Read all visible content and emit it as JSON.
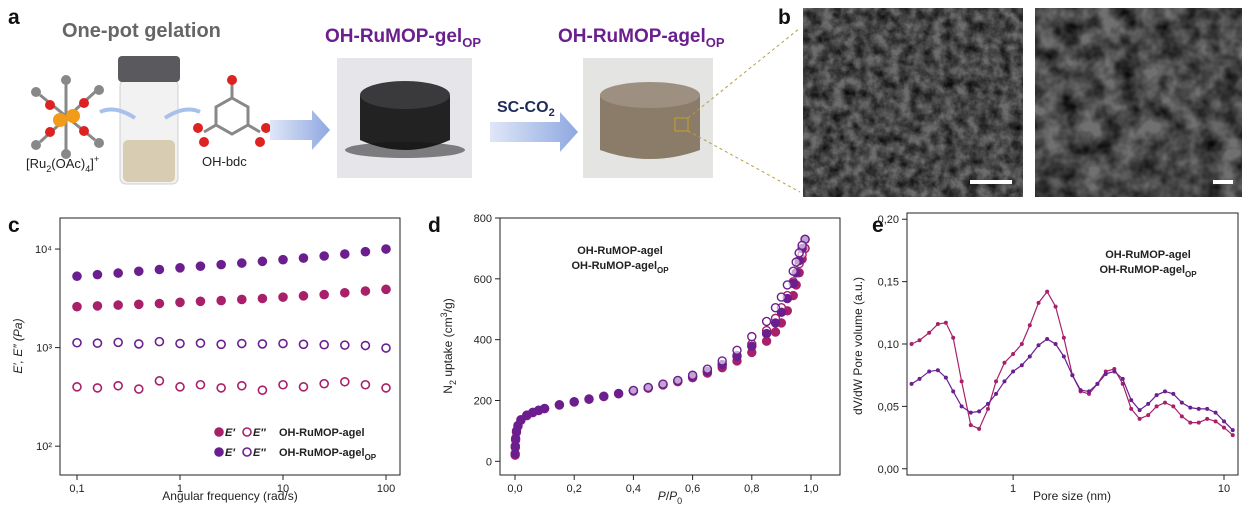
{
  "panel_labels": [
    "a",
    "b",
    "c",
    "d",
    "e"
  ],
  "scheme": {
    "title": "One-pot gelation",
    "complex": [
      "[Ru",
      "2",
      "(OAc)",
      "4",
      "]",
      "+"
    ],
    "linker": "OH-bdc",
    "gel": {
      "text": "OH-RuMOP-gel",
      "sub": "OP"
    },
    "process": {
      "text": "SC-CO",
      "sub": "2"
    },
    "aerogel": {
      "text": "OH-RuMOP-agel",
      "sub": "OP"
    }
  },
  "chart_data": [
    {
      "type": "scatter",
      "xlabel": "Angular frequency (rad/s)",
      "ylabel": "E′, E″ (Pa)",
      "log_x": true,
      "log_y": true,
      "xlim": [
        0.0684,
        136.7
      ],
      "ylim": [
        51,
        20650
      ],
      "xticks": [
        {
          "value": 0.1,
          "label": "0,1"
        },
        1,
        10,
        100
      ],
      "yticks": [
        {
          "value": 100,
          "label": "10²"
        },
        {
          "value": 1000,
          "label": "10³"
        },
        {
          "value": 10000,
          "label": "10⁴"
        }
      ],
      "moduli": [
        {
          "label": "E′",
          "marker": "filled"
        },
        {
          "label": "E″",
          "marker": "open"
        }
      ],
      "x": [
        0.1,
        0.158,
        0.251,
        0.398,
        0.631,
        1,
        1.58,
        2.51,
        3.98,
        6.31,
        10,
        15.8,
        25.1,
        39.8,
        63.1,
        100
      ],
      "samples": [
        {
          "name": "OH-RuMOP-agel",
          "color": "#a8206a",
          "values": [
            [
              2600,
              2650,
              2700,
              2750,
              2800,
              2880,
              2950,
              3000,
              3080,
              3150,
              3250,
              3350,
              3450,
              3600,
              3750,
              3900
            ],
            [
              400,
              390,
              410,
              380,
              460,
              400,
              420,
              390,
              410,
              370,
              420,
              400,
              430,
              450,
              420,
              390
            ]
          ]
        },
        {
          "name": "OH-RuMOP-agel",
          "name_sub": "OP",
          "color": "#6b1f8f",
          "values": [
            [
              5300,
              5500,
              5700,
              5950,
              6200,
              6450,
              6700,
              6950,
              7200,
              7500,
              7800,
              8100,
              8500,
              8900,
              9400,
              10000
            ],
            [
              1120,
              1110,
              1130,
              1090,
              1150,
              1100,
              1110,
              1080,
              1100,
              1090,
              1100,
              1080,
              1070,
              1060,
              1050,
              990
            ]
          ]
        }
      ]
    },
    {
      "type": "isotherm",
      "xlabel": [
        "P",
        "/",
        "P",
        "0"
      ],
      "ylabel": [
        "N",
        "2",
        " uptake (cm",
        "3",
        "/g)"
      ],
      "xlim": [
        -0.0507,
        1.098
      ],
      "ylim": [
        -45,
        800
      ],
      "xticks": [
        {
          "value": 0,
          "label": "0,0"
        },
        {
          "value": 0.2,
          "label": "0,2"
        },
        {
          "value": 0.4,
          "label": "0,4"
        },
        {
          "value": 0.6,
          "label": "0,6"
        },
        {
          "value": 0.8,
          "label": "0,8"
        },
        {
          "value": 1,
          "label": "1,0"
        }
      ],
      "yticks": [
        0,
        200,
        400,
        600,
        800
      ],
      "samples": [
        {
          "name": "OH-RuMOP-agel",
          "color": "#a8206a",
          "branches": [
            {
              "marker": "filled",
              "x": [
                0.0005,
                0.001,
                0.002,
                0.005,
                0.01,
                0.02,
                0.04,
                0.06,
                0.08,
                0.1,
                0.15,
                0.2,
                0.25,
                0.3,
                0.35,
                0.4,
                0.45,
                0.5,
                0.55,
                0.6,
                0.65,
                0.7,
                0.75,
                0.8,
                0.85,
                0.88,
                0.9,
                0.92,
                0.94,
                0.95,
                0.96,
                0.97,
                0.98
              ],
              "y": [
                20,
                45,
                70,
                95,
                115,
                135,
                150,
                160,
                167,
                173,
                185,
                195,
                204,
                213,
                222,
                231,
                241,
                251,
                262,
                275,
                290,
                308,
                330,
                358,
                395,
                425,
                455,
                495,
                545,
                580,
                620,
                665,
                700
              ]
            },
            {
              "marker": "open",
              "x": [
                0.98,
                0.97,
                0.96,
                0.95,
                0.94,
                0.92,
                0.9,
                0.88,
                0.85,
                0.8,
                0.75,
                0.7,
                0.65,
                0.6,
                0.55,
                0.5,
                0.45,
                0.4
              ],
              "y": [
                700,
                680,
                650,
                620,
                590,
                545,
                505,
                470,
                430,
                385,
                348,
                318,
                295,
                278,
                263,
                252,
                241,
                232
              ]
            }
          ]
        },
        {
          "name": "OH-RuMOP-agel",
          "name_sub": "OP",
          "color": "#6b1f8f",
          "branches": [
            {
              "marker": "filled",
              "x": [
                0.0005,
                0.001,
                0.002,
                0.005,
                0.01,
                0.02,
                0.04,
                0.06,
                0.08,
                0.1,
                0.15,
                0.2,
                0.25,
                0.3,
                0.35,
                0.4,
                0.45,
                0.5,
                0.55,
                0.6,
                0.65,
                0.7,
                0.75,
                0.8,
                0.85,
                0.88,
                0.9,
                0.92,
                0.94,
                0.95,
                0.96,
                0.97,
                0.98
              ],
              "y": [
                25,
                50,
                75,
                100,
                118,
                137,
                152,
                161,
                168,
                174,
                186,
                196,
                205,
                214,
                223,
                232,
                242,
                253,
                265,
                279,
                296,
                318,
                345,
                378,
                420,
                455,
                490,
                535,
                585,
                620,
                660,
                700,
                730
              ]
            },
            {
              "marker": "open",
              "x": [
                0.98,
                0.97,
                0.96,
                0.95,
                0.94,
                0.92,
                0.9,
                0.88,
                0.85,
                0.8,
                0.75,
                0.7,
                0.65,
                0.6,
                0.55,
                0.5,
                0.45,
                0.4
              ],
              "y": [
                730,
                710,
                685,
                655,
                625,
                580,
                540,
                505,
                460,
                410,
                365,
                330,
                303,
                283,
                266,
                254,
                243,
                233
              ]
            }
          ]
        }
      ]
    },
    {
      "type": "line",
      "xlabel": "Pore size (nm)",
      "ylabel": "dV/dW Pore volume (a.u.)",
      "log_x": true,
      "xlim": [
        0.314,
        11.65
      ],
      "ylim": [
        -0.005,
        0.205
      ],
      "xticks": [
        1,
        10
      ],
      "yticks": [
        {
          "value": 0,
          "label": "0,00"
        },
        {
          "value": 0.05,
          "label": "0,05"
        },
        {
          "value": 0.1,
          "label": "0,10"
        },
        {
          "value": 0.15,
          "label": "0,15"
        },
        {
          "value": 0.2,
          "label": "0,20"
        }
      ],
      "x": [
        0.33,
        0.36,
        0.4,
        0.44,
        0.48,
        0.52,
        0.57,
        0.63,
        0.69,
        0.76,
        0.83,
        0.91,
        1,
        1.1,
        1.2,
        1.32,
        1.45,
        1.59,
        1.74,
        1.91,
        2.09,
        2.29,
        2.51,
        2.75,
        3.02,
        3.31,
        3.63,
        3.98,
        4.37,
        4.79,
        5.25,
        5.75,
        6.31,
        6.92,
        7.59,
        8.32,
        9.12,
        10,
        11
      ],
      "samples": [
        {
          "name": "OH-RuMOP-agel",
          "color": "#a8206a",
          "values": [
            0.1,
            0.103,
            0.109,
            0.116,
            0.117,
            0.105,
            0.07,
            0.035,
            0.032,
            0.048,
            0.07,
            0.085,
            0.092,
            0.1,
            0.115,
            0.133,
            0.142,
            0.13,
            0.105,
            0.075,
            0.062,
            0.06,
            0.068,
            0.078,
            0.08,
            0.068,
            0.048,
            0.04,
            0.043,
            0.05,
            0.053,
            0.05,
            0.042,
            0.037,
            0.037,
            0.04,
            0.038,
            0.033,
            0.027
          ]
        },
        {
          "name": "OH-RuMOP-agel",
          "name_sub": "OP",
          "color": "#6b1f8f",
          "values": [
            0.068,
            0.072,
            0.078,
            0.079,
            0.073,
            0.062,
            0.05,
            0.045,
            0.046,
            0.052,
            0.06,
            0.07,
            0.078,
            0.083,
            0.09,
            0.099,
            0.104,
            0.1,
            0.09,
            0.075,
            0.063,
            0.062,
            0.068,
            0.076,
            0.078,
            0.072,
            0.055,
            0.047,
            0.052,
            0.059,
            0.062,
            0.06,
            0.053,
            0.049,
            0.048,
            0.048,
            0.045,
            0.038,
            0.031
          ]
        }
      ]
    }
  ]
}
